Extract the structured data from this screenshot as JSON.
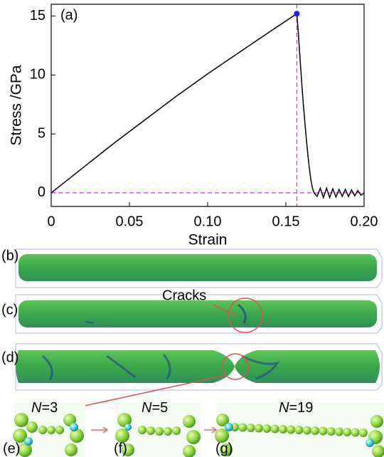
{
  "chart_data": {
    "type": "line",
    "panel_label": "(a)",
    "x_label": "Strain",
    "y_label": "Stress /GPa",
    "series": [
      {
        "color": "#000000",
        "x": [
          0,
          0.02,
          0.04,
          0.06,
          0.08,
          0.1,
          0.12,
          0.14,
          0.157,
          0.158,
          0.159,
          0.16,
          0.161,
          0.162,
          0.163,
          0.164,
          0.165,
          0.166,
          0.167,
          0.168,
          0.17,
          0.172,
          0.174,
          0.176,
          0.178,
          0.18,
          0.182,
          0.184,
          0.186,
          0.188,
          0.19,
          0.192,
          0.194,
          0.196,
          0.198,
          0.2
        ],
        "values": [
          0,
          2.1,
          4.2,
          6.2,
          8.2,
          10.1,
          11.9,
          13.7,
          15.2,
          13.5,
          11.5,
          9.6,
          7.8,
          6.2,
          4.7,
          3.3,
          2.1,
          1.1,
          0.4,
          0,
          -0.3,
          0.4,
          -0.4,
          0.4,
          -0.4,
          0.35,
          -0.35,
          0.3,
          -0.3,
          0.3,
          -0.3,
          0.25,
          -0.25,
          0.2,
          -0.2,
          0
        ]
      }
    ],
    "peak": {
      "x": 0.157,
      "y": 15.2,
      "color": "#1a1aff"
    },
    "reference_lines": {
      "color": "#e040e0",
      "y": 0,
      "x": 0.157
    },
    "xlim": [
      0,
      0.2
    ],
    "ylim": [
      -1.15,
      16
    ],
    "xticks": [
      0,
      0.05,
      {
        "value": 0.1,
        "label": "0.10"
      },
      0.15,
      {
        "value": 0.2,
        "label": "0.20"
      }
    ],
    "yticks": [
      0,
      5,
      10,
      15
    ]
  },
  "panels": {
    "b": "(b)",
    "c": "(c)",
    "d": "(d)",
    "cracks": "Cracks",
    "e": {
      "label": "(e)",
      "var": "N",
      "eq": "=3"
    },
    "f": {
      "label": "(f)",
      "var": "N",
      "eq": "=5"
    },
    "g": {
      "label": "(g)",
      "var": "N",
      "eq": "=19"
    }
  }
}
